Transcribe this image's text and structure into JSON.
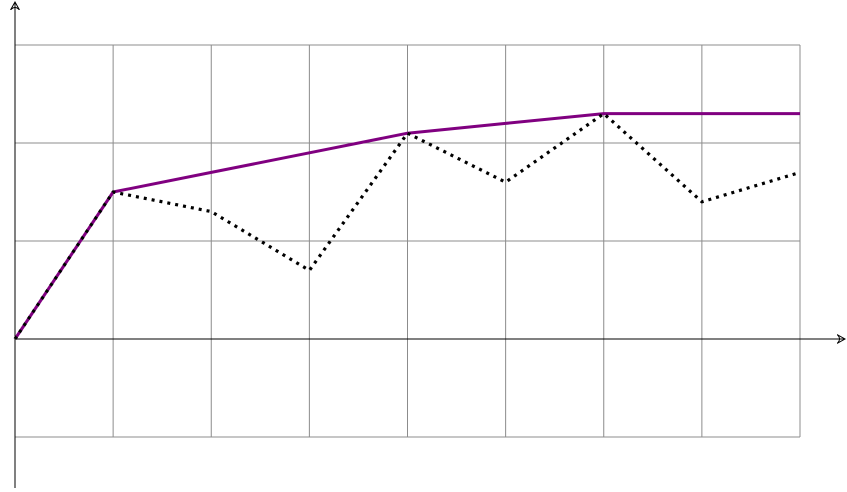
{
  "chart_data": {
    "type": "line",
    "title": "",
    "xlabel": "",
    "ylabel": "",
    "xlim": [
      0,
      8
    ],
    "ylim": [
      -1,
      3
    ],
    "grid": true,
    "x": [
      0,
      1,
      2,
      3,
      4,
      5,
      6,
      7,
      8
    ],
    "series": [
      {
        "style": "solid",
        "color": "#800080",
        "values": [
          0,
          1.5,
          1.7,
          1.9,
          2.1,
          2.2,
          2.3,
          2.3,
          2.3
        ]
      },
      {
        "style": "dotted",
        "color": "#000000",
        "values": [
          0,
          1.5,
          1.3,
          0.7,
          2.1,
          1.6,
          2.3,
          1.4,
          1.7
        ]
      }
    ]
  }
}
